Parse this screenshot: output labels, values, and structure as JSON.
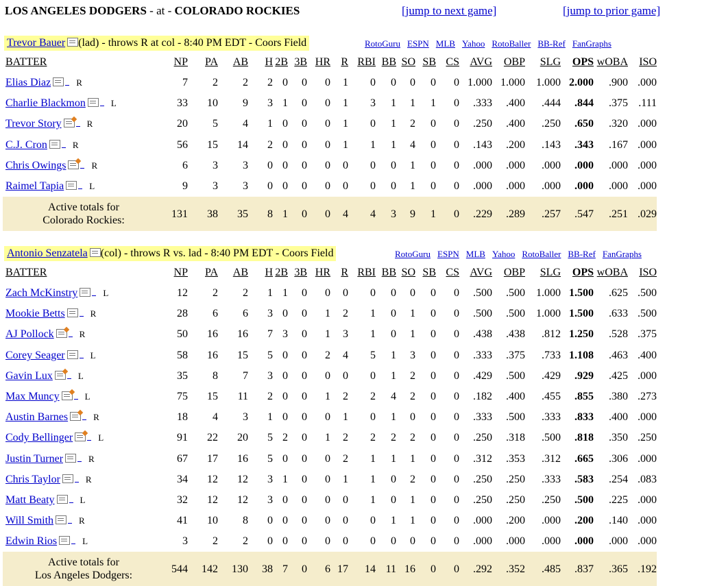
{
  "header": {
    "away": "LOS ANGELES DODGERS",
    "sep": " - at - ",
    "home": "COLORADO ROCKIES",
    "next_link": "[jump to next game]",
    "prior_link": "[jump to prior game]"
  },
  "columns": [
    "BATTER",
    "NP",
    "PA",
    "AB",
    "H",
    "2B",
    "3B",
    "HR",
    "R",
    "RBI",
    "BB",
    "SO",
    "SB",
    "CS",
    "AVG",
    "OBP",
    "SLG",
    "OPS",
    "wOBA",
    "ISO"
  ],
  "links": [
    "RotoGuru",
    "ESPN",
    "MLB",
    "Yahoo",
    "RotoBaller",
    "BB-Ref",
    "FanGraphs"
  ],
  "sections": [
    {
      "pitcher": "Trevor Bauer",
      "pitcher_info": "(lad) - throws R at col - 8:40 PM EDT - Coors Field",
      "rows": [
        {
          "name": "Elias Diaz",
          "hand": "R",
          "note": "gray",
          "v": [
            "7",
            "2",
            "2",
            "2",
            "0",
            "0",
            "0",
            "1",
            "0",
            "0",
            "0",
            "0",
            "0",
            "1.000",
            "1.000",
            "1.000",
            "2.000",
            ".900",
            ".000"
          ]
        },
        {
          "name": "Charlie Blackmon",
          "hand": "L",
          "note": "gray",
          "v": [
            "33",
            "10",
            "9",
            "3",
            "1",
            "0",
            "0",
            "1",
            "3",
            "1",
            "1",
            "1",
            "0",
            ".333",
            ".400",
            ".444",
            ".844",
            ".375",
            ".111"
          ]
        },
        {
          "name": "Trevor Story",
          "hand": "R",
          "note": "orange",
          "v": [
            "20",
            "5",
            "4",
            "1",
            "0",
            "0",
            "0",
            "1",
            "0",
            "1",
            "2",
            "0",
            "0",
            ".250",
            ".400",
            ".250",
            ".650",
            ".320",
            ".000"
          ]
        },
        {
          "name": "C.J. Cron",
          "hand": "R",
          "note": "gray",
          "v": [
            "56",
            "15",
            "14",
            "2",
            "0",
            "0",
            "0",
            "1",
            "1",
            "1",
            "4",
            "0",
            "0",
            ".143",
            ".200",
            ".143",
            ".343",
            ".167",
            ".000"
          ]
        },
        {
          "name": "Chris Owings",
          "hand": "R",
          "note": "orange",
          "v": [
            "6",
            "3",
            "3",
            "0",
            "0",
            "0",
            "0",
            "0",
            "0",
            "0",
            "1",
            "0",
            "0",
            ".000",
            ".000",
            ".000",
            ".000",
            ".000",
            ".000"
          ]
        },
        {
          "name": "Raimel Tapia",
          "hand": "L",
          "note": "gray",
          "v": [
            "9",
            "3",
            "3",
            "0",
            "0",
            "0",
            "0",
            "0",
            "0",
            "0",
            "1",
            "0",
            "0",
            ".000",
            ".000",
            ".000",
            ".000",
            ".000",
            ".000"
          ]
        }
      ],
      "total_label_1": "Active totals for",
      "total_label_2": "Colorado Rockies:",
      "totals": [
        "131",
        "38",
        "35",
        "8",
        "1",
        "0",
        "0",
        "4",
        "4",
        "3",
        "9",
        "1",
        "0",
        ".229",
        ".289",
        ".257",
        ".547",
        ".251",
        ".029"
      ]
    },
    {
      "pitcher": "Antonio Senzatela",
      "pitcher_info": "(col) - throws R vs. lad - 8:40 PM EDT - Coors Field",
      "rows": [
        {
          "name": "Zach McKinstry",
          "hand": "L",
          "note": "gray",
          "v": [
            "12",
            "2",
            "2",
            "1",
            "1",
            "0",
            "0",
            "0",
            "0",
            "0",
            "0",
            "0",
            "0",
            ".500",
            ".500",
            "1.000",
            "1.500",
            ".625",
            ".500"
          ]
        },
        {
          "name": "Mookie Betts",
          "hand": "R",
          "note": "gray",
          "v": [
            "28",
            "6",
            "6",
            "3",
            "0",
            "0",
            "1",
            "2",
            "1",
            "0",
            "1",
            "0",
            "0",
            ".500",
            ".500",
            "1.000",
            "1.500",
            ".633",
            ".500"
          ]
        },
        {
          "name": "AJ Pollock",
          "hand": "R",
          "note": "orange",
          "v": [
            "50",
            "16",
            "16",
            "7",
            "3",
            "0",
            "1",
            "3",
            "1",
            "0",
            "1",
            "0",
            "0",
            ".438",
            ".438",
            ".812",
            "1.250",
            ".528",
            ".375"
          ]
        },
        {
          "name": "Corey Seager",
          "hand": "L",
          "note": "gray",
          "v": [
            "58",
            "16",
            "15",
            "5",
            "0",
            "0",
            "2",
            "4",
            "5",
            "1",
            "3",
            "0",
            "0",
            ".333",
            ".375",
            ".733",
            "1.108",
            ".463",
            ".400"
          ]
        },
        {
          "name": "Gavin Lux",
          "hand": "L",
          "note": "orange",
          "v": [
            "35",
            "8",
            "7",
            "3",
            "0",
            "0",
            "0",
            "0",
            "0",
            "1",
            "2",
            "0",
            "0",
            ".429",
            ".500",
            ".429",
            ".929",
            ".425",
            ".000"
          ]
        },
        {
          "name": "Max Muncy",
          "hand": "L",
          "note": "orange",
          "v": [
            "75",
            "15",
            "11",
            "2",
            "0",
            "0",
            "1",
            "2",
            "2",
            "4",
            "2",
            "0",
            "0",
            ".182",
            ".400",
            ".455",
            ".855",
            ".380",
            ".273"
          ]
        },
        {
          "name": "Austin Barnes",
          "hand": "R",
          "note": "orange",
          "v": [
            "18",
            "4",
            "3",
            "1",
            "0",
            "0",
            "0",
            "1",
            "0",
            "1",
            "0",
            "0",
            "0",
            ".333",
            ".500",
            ".333",
            ".833",
            ".400",
            ".000"
          ]
        },
        {
          "name": "Cody Bellinger",
          "hand": "L",
          "note": "orange",
          "v": [
            "91",
            "22",
            "20",
            "5",
            "2",
            "0",
            "1",
            "2",
            "2",
            "2",
            "2",
            "0",
            "0",
            ".250",
            ".318",
            ".500",
            ".818",
            ".350",
            ".250"
          ]
        },
        {
          "name": "Justin Turner",
          "hand": "R",
          "note": "gray",
          "v": [
            "67",
            "17",
            "16",
            "5",
            "0",
            "0",
            "0",
            "2",
            "1",
            "1",
            "1",
            "0",
            "0",
            ".312",
            ".353",
            ".312",
            ".665",
            ".306",
            ".000"
          ]
        },
        {
          "name": "Chris Taylor",
          "hand": "R",
          "note": "gray",
          "v": [
            "34",
            "12",
            "12",
            "3",
            "1",
            "0",
            "0",
            "1",
            "1",
            "0",
            "2",
            "0",
            "0",
            ".250",
            ".250",
            ".333",
            ".583",
            ".254",
            ".083"
          ]
        },
        {
          "name": "Matt Beaty",
          "hand": "L",
          "note": "gray",
          "v": [
            "32",
            "12",
            "12",
            "3",
            "0",
            "0",
            "0",
            "0",
            "1",
            "0",
            "1",
            "0",
            "0",
            ".250",
            ".250",
            ".250",
            ".500",
            ".225",
            ".000"
          ]
        },
        {
          "name": "Will Smith",
          "hand": "R",
          "note": "gray",
          "v": [
            "41",
            "10",
            "8",
            "0",
            "0",
            "0",
            "0",
            "0",
            "0",
            "1",
            "1",
            "0",
            "0",
            ".000",
            ".200",
            ".000",
            ".200",
            ".140",
            ".000"
          ]
        },
        {
          "name": "Edwin Rios",
          "hand": "L",
          "note": "gray",
          "v": [
            "3",
            "2",
            "2",
            "0",
            "0",
            "0",
            "0",
            "0",
            "0",
            "0",
            "0",
            "0",
            "0",
            ".000",
            ".000",
            ".000",
            ".000",
            ".000",
            ".000"
          ]
        }
      ],
      "total_label_1": "Active totals for",
      "total_label_2": "Los Angeles Dodgers:",
      "totals": [
        "544",
        "142",
        "130",
        "38",
        "7",
        "0",
        "6",
        "17",
        "14",
        "11",
        "16",
        "0",
        "0",
        ".292",
        ".352",
        ".485",
        ".837",
        ".365",
        ".192"
      ]
    }
  ]
}
